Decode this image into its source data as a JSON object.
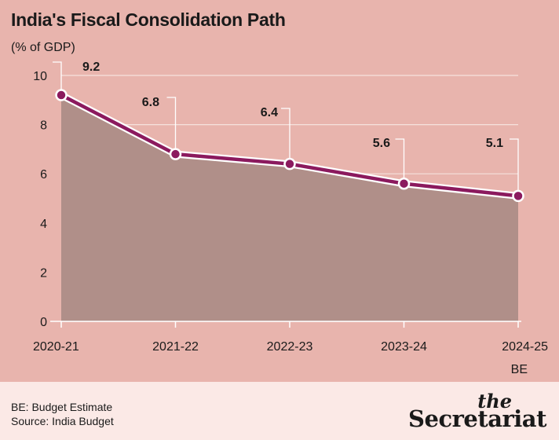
{
  "chart_data": {
    "type": "area",
    "title": "India's Fiscal Consolidation Path",
    "ylabel": "(% of GDP)",
    "xlabel": "",
    "categories": [
      "2020-21",
      "2021-22",
      "2022-23",
      "2023-24",
      "2024-25"
    ],
    "category_sublabels": [
      "",
      "",
      "",
      "",
      "BE"
    ],
    "values": [
      9.2,
      6.8,
      6.4,
      5.6,
      5.1
    ],
    "data_labels": [
      "9.2",
      "6.8",
      "6.4",
      "5.6",
      "5.1"
    ],
    "ylim": [
      0,
      10
    ],
    "yticks": [
      0,
      2,
      4,
      6,
      8,
      10
    ],
    "grid": true,
    "colors": {
      "line": "#8b1a5e",
      "area": "#b08f89",
      "background": "#e8b4ad"
    }
  },
  "footer": {
    "note": "BE: Budget Estimate",
    "source": "Source: India Budget",
    "brand_the": "the",
    "brand_name": "Secretariat"
  }
}
